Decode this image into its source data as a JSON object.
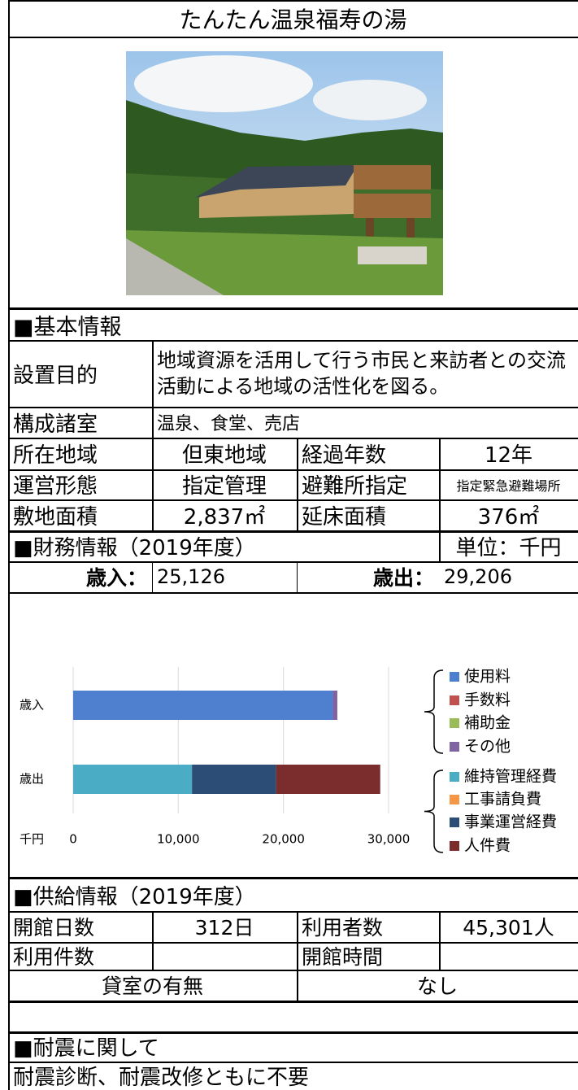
{
  "title": "たんたん温泉福寿の湯",
  "basic_info": {
    "heading": "■基本情報",
    "purpose_label": "設置目的",
    "purpose": "地域資源を活用して行う市民と来訪者との交流活動による地域の活性化を図る。",
    "rows": [
      [
        "構成諸室",
        "温泉、食堂、売店"
      ],
      [
        "所在地域",
        "但東地域",
        "経過年数",
        "12年"
      ],
      [
        "運営形態",
        "指定管理",
        "避難所指定",
        "指定緊急避難場所"
      ],
      [
        "敷地面積",
        "2,837㎡",
        "延床面積",
        "376㎡"
      ]
    ]
  },
  "finance": {
    "heading": "■財務情報（2019年度）",
    "unit": "単位：千円",
    "revenue_label": "歳入：",
    "revenue": "25,126",
    "expenditure_label": "歳出：",
    "expenditure": "29,206"
  },
  "chart_data": {
    "type": "stacked-bar-horizontal",
    "categories": [
      "歳入",
      "歳出"
    ],
    "unit_label": "千円",
    "xlim": [
      0,
      30000
    ],
    "xticks": [
      0,
      {
        "value": 10000,
        "label": "10,000"
      },
      {
        "value": 20000,
        "label": "20,000"
      },
      {
        "value": 30000,
        "label": "30,000"
      }
    ],
    "grid": true,
    "series": [
      {
        "name": "使用料",
        "color": "#4f7fcf",
        "values": [
          24700,
          0
        ]
      },
      {
        "name": "手数料",
        "color": "#c0504d",
        "values": [
          0,
          0
        ]
      },
      {
        "name": "補助金",
        "color": "#9bbb59",
        "values": [
          0,
          0
        ]
      },
      {
        "name": "その他",
        "color": "#8064a2",
        "values": [
          426,
          0
        ]
      },
      {
        "name": "維持管理経費",
        "color": "#4bacc6",
        "values": [
          0,
          11300
        ]
      },
      {
        "name": "工事請負費",
        "color": "#f79646",
        "values": [
          0,
          0
        ]
      },
      {
        "name": "事業運営経費",
        "color": "#2c4d75",
        "values": [
          0,
          8000
        ]
      },
      {
        "name": "人件費",
        "color": "#7b2c2c",
        "values": [
          0,
          9906
        ]
      }
    ]
  },
  "supply": {
    "heading": "■供給情報（2019年度）",
    "rows": [
      [
        "開館日数",
        "312日",
        "利用者数",
        "45,301人"
      ],
      [
        "利用件数",
        null,
        "開館時間",
        null
      ]
    ],
    "rental": [
      "貸室の有無",
      "なし"
    ]
  },
  "seismic": {
    "heading": "■耐震に関して",
    "text": "耐震診断、耐震改修ともに不要"
  }
}
